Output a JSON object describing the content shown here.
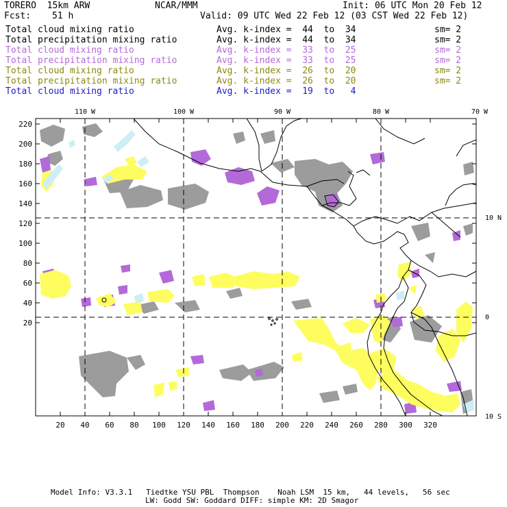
{
  "header": {
    "model": "TORERO  15km ARW",
    "org": "NCAR/MMM",
    "init": "Init: 06 UTC Mon 20 Feb 12",
    "fcst_label": "Fcst:",
    "fcst_value": "51 h",
    "valid": "Valid: 09 UTC Wed 22 Feb 12 (03 CST Wed 22 Feb 12)"
  },
  "legend": [
    {
      "name": "Total cloud mixing ratio",
      "avg": "Avg. k-index =  44  to  34",
      "sm": "sm= 2",
      "color": "#000000"
    },
    {
      "name": "Total precipitation mixing ratio",
      "avg": "Avg. k-index =  44  to  34",
      "sm": "sm= 2",
      "color": "#000000"
    },
    {
      "name": "Total cloud mixing ratio",
      "avg": "Avg. k-index =  33  to  25",
      "sm": "sm= 2",
      "color": "#b36ad8"
    },
    {
      "name": "Total precipitation mixing ratio",
      "avg": "Avg. k-index =  33  to  25",
      "sm": "sm= 2",
      "color": "#b36ad8"
    },
    {
      "name": "Total cloud mixing ratio",
      "avg": "Avg. k-index =  26  to  20",
      "sm": "sm= 2",
      "color": "#8a8a10"
    },
    {
      "name": "Total precipitation mixing ratio",
      "avg": "Avg. k-index =  26  to  20",
      "sm": "sm= 2",
      "color": "#8a8a10"
    },
    {
      "name": "Total cloud mixing ratio",
      "avg": "Avg. k-index =  19  to   4",
      "sm": "",
      "color": "#1a1acc"
    }
  ],
  "map": {
    "lon_labels": [
      "110 W",
      "100 W",
      "90 W",
      "80 W",
      "70 W"
    ],
    "lat_labels": [
      "10 N",
      "0",
      "10 S"
    ],
    "y_ticks": [
      "220",
      "200",
      "180",
      "160",
      "140",
      "120",
      "100",
      "80",
      "60",
      "40",
      "20"
    ],
    "x_ticks": [
      "20",
      "40",
      "60",
      "80",
      "100",
      "120",
      "140",
      "160",
      "180",
      "200",
      "220",
      "240",
      "260",
      "280",
      "300",
      "320"
    ],
    "colors": {
      "cloud_gray": "#9c9c9c",
      "magenta": "#b36ad8",
      "yellow": "#fdfd60",
      "light_blue": "#cdeef6",
      "coast": "#000000"
    }
  },
  "footer": {
    "line1": "Model Info: V3.3.1   Tiedtke YSU PBL  Thompson    Noah LSM  15 km,   44 levels,   56 sec",
    "line2": "LW: Godd SW: Goddard DIFF: simple KM: 2D Smagor"
  }
}
